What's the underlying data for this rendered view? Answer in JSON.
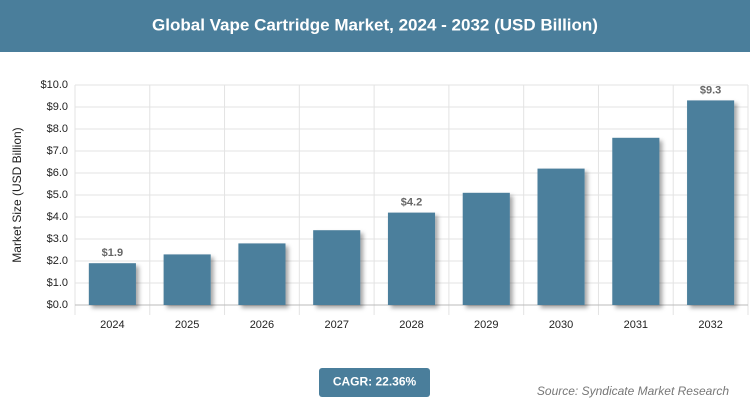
{
  "chart_data": {
    "type": "bar",
    "title": "Global Vape Cartridge Market, 2024 - 2032 (USD Billion)",
    "y_label": "Market Size (USD Billion)",
    "categories": [
      "2024",
      "2025",
      "2026",
      "2027",
      "2028",
      "2029",
      "2030",
      "2031",
      "2032"
    ],
    "values": [
      1.9,
      2.3,
      2.8,
      3.4,
      4.2,
      5.1,
      6.2,
      7.6,
      9.3
    ],
    "value_labels": [
      "$1.9",
      null,
      null,
      null,
      "$4.2",
      null,
      null,
      null,
      "$9.3"
    ],
    "color": "#4c7f9c",
    "ylim": [
      0,
      10
    ],
    "yticks": [
      {
        "value": 0,
        "label": "$0.0"
      },
      {
        "value": 1,
        "label": "$1.0"
      },
      {
        "value": 2,
        "label": "$2.0"
      },
      {
        "value": 3,
        "label": "$3.0"
      },
      {
        "value": 4,
        "label": "$4.0"
      },
      {
        "value": 5,
        "label": "$5.0"
      },
      {
        "value": 6,
        "label": "$6.0"
      },
      {
        "value": 7,
        "label": "$7.0"
      },
      {
        "value": 8,
        "label": "$8.0"
      },
      {
        "value": 9,
        "label": "$9.0"
      },
      {
        "value": 10,
        "label": "$10.0"
      }
    ],
    "grid": true,
    "annotation": "CAGR: 22.36%",
    "source": "Source: Syndicate Market Research"
  }
}
